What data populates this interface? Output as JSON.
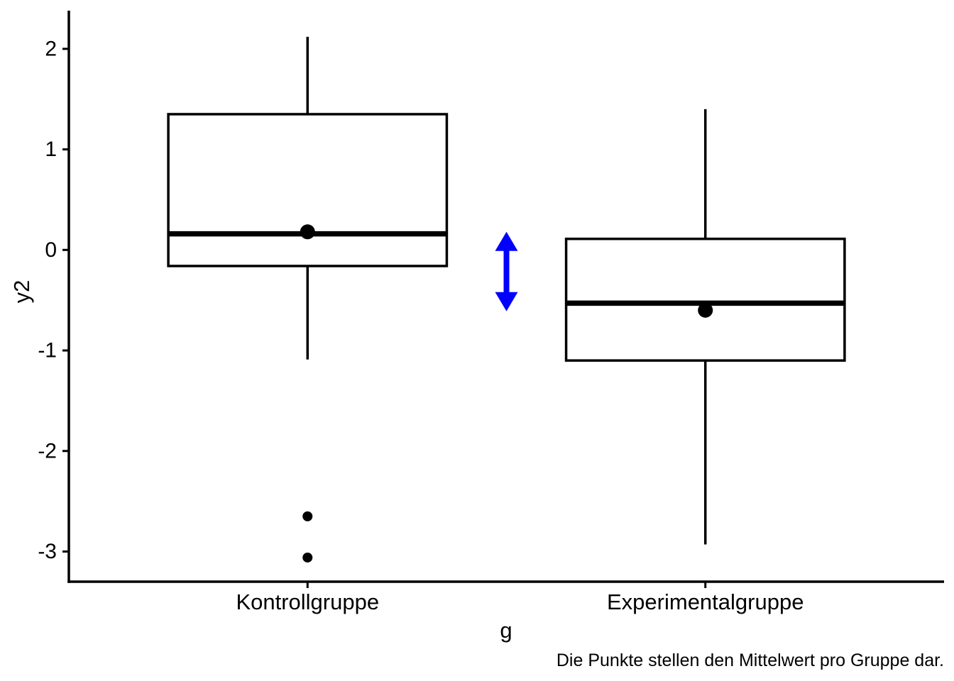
{
  "chart_data": {
    "type": "boxplot",
    "title": "",
    "xlabel": "g",
    "ylabel": "y2",
    "caption": "Die Punkte stellen den Mittelwert pro Gruppe dar.",
    "categories": [
      "Kontrollgruppe",
      "Experimentalgruppe"
    ],
    "y_ticks": [
      2,
      1,
      0,
      -1,
      -2,
      -3
    ],
    "ylim": [
      -3.3,
      2.38
    ],
    "grid": "off",
    "legend": "none",
    "box_width_units": 0.7,
    "series": [
      {
        "name": "Kontrollgruppe",
        "whisker_low": -1.09,
        "q1": -0.16,
        "median": 0.16,
        "q3": 1.35,
        "whisker_high": 2.12,
        "mean": 0.18,
        "outliers": [
          -2.65,
          -3.06
        ]
      },
      {
        "name": "Experimentalgruppe",
        "whisker_low": -2.93,
        "q1": -1.1,
        "median": -0.53,
        "q3": 0.11,
        "whisker_high": 1.4,
        "mean": -0.6,
        "outliers": []
      }
    ],
    "annotation_arrow": {
      "x_units": 1.5,
      "y_from": 0.18,
      "y_to": -0.61,
      "style": "double-headed-vertical",
      "color": "#0000ff"
    },
    "colors": {
      "box_stroke": "#000000",
      "box_fill": "#ffffff",
      "mean_point": "#000000",
      "outlier_point": "#000000",
      "axis": "#000000",
      "arrow": "#0000ff",
      "background": "#ffffff"
    }
  }
}
